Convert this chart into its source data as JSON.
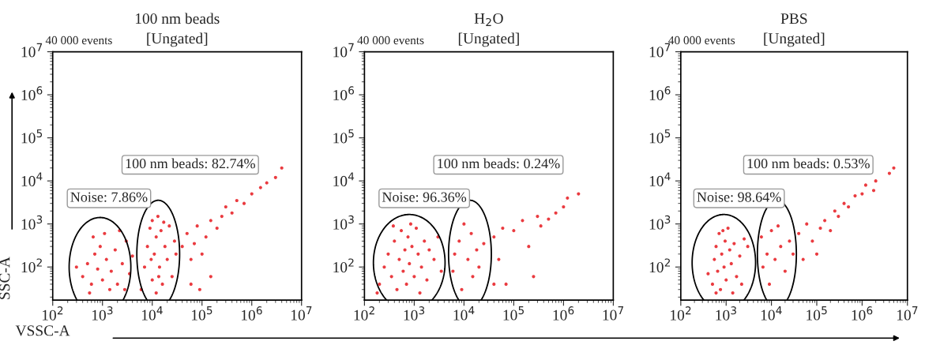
{
  "chart_data": [
    {
      "type": "scatter",
      "title": "100 nm beads",
      "subtitle": "[Ungated]",
      "xlabel": "VSSC-A",
      "ylabel": "SSC-A",
      "annotations": [
        "40 000 events",
        "Noise: 7.86%",
        "100 nm beads: 82.74%"
      ],
      "series": [
        {
          "color": "#e8262b",
          "x": [
            400,
            500,
            600,
            700,
            800,
            900,
            1000,
            1200,
            1500,
            1800,
            2000,
            2500,
            3000,
            3500,
            4000,
            650,
            1100,
            2200,
            300,
            1400,
            2800,
            550,
            6000,
            7000,
            8000,
            9000,
            10000,
            10000,
            11000,
            12000,
            12000,
            13000,
            14000,
            15000,
            16000,
            18000,
            20000,
            22000,
            25000,
            28000,
            30000,
            9500,
            13500,
            17000,
            40000,
            50000,
            60000,
            70000,
            80000,
            100000,
            120000,
            150000,
            200000,
            250000,
            300000,
            400000,
            500000,
            700000,
            1000000,
            1500000,
            2000000,
            3000000,
            4000000,
            60000,
            150000,
            90000
          ],
          "values": [
            60,
            120,
            40,
            200,
            90,
            300,
            50,
            150,
            80,
            250,
            40,
            120,
            400,
            70,
            180,
            500,
            600,
            700,
            100,
            30,
            30,
            25,
            30,
            100,
            300,
            800,
            50,
            1200,
            200,
            500,
            25,
            1500,
            100,
            700,
            40,
            300,
            150,
            900,
            60,
            400,
            200,
            150,
            60,
            1100,
            300,
            600,
            150,
            350,
            900,
            200,
            500,
            1200,
            800,
            1500,
            2500,
            1800,
            3500,
            3000,
            5000,
            7000,
            9000,
            12000,
            20000,
            40,
            60,
            30
          ]
        }
      ],
      "xlim": [
        100,
        10000000
      ],
      "ylim": [
        17,
        10000000
      ],
      "xticks": [
        {
          "value": 100,
          "label": "10$^{2}$"
        },
        {
          "value": 1000,
          "label": "10$^{3}$"
        },
        {
          "value": 10000,
          "label": "10$^{4}$"
        },
        {
          "value": 100000,
          "label": "10$^{5}$"
        },
        {
          "value": 1000000,
          "label": "10$^{6}$"
        },
        {
          "value": 10000000,
          "label": "10$^{7}$"
        }
      ],
      "yticks": [
        {
          "value": 100,
          "label": "10$^{2}$"
        },
        {
          "value": 1000,
          "label": "10$^{3}$"
        },
        {
          "value": 10000,
          "label": "10$^{4}$"
        },
        {
          "value": 100000,
          "label": "10$^{5}$"
        },
        {
          "value": 1000000,
          "label": "10$^{6}$"
        },
        {
          "value": 10000000,
          "label": "10$^{7}$"
        }
      ],
      "log": "xy",
      "grid": false,
      "marker": "circle"
    },
    {
      "type": "scatter",
      "title": "H$_{2}$O",
      "subtitle": "[Ungated]",
      "annotations": [
        "40 000 events",
        "Noise: 96.36%",
        "100 nm beads: 0.24%"
      ],
      "series": [
        {
          "color": "#e8262b",
          "x": [
            200,
            250,
            300,
            350,
            400,
            450,
            500,
            550,
            600,
            650,
            700,
            750,
            800,
            900,
            1000,
            1100,
            1200,
            1400,
            1600,
            1800,
            2000,
            2500,
            3000,
            3500,
            180,
            380,
            850,
            1300,
            6500,
            6000,
            8000,
            9000,
            10000,
            12000,
            14000,
            15000,
            18000,
            20000,
            25000,
            40000,
            40000,
            50000,
            60000,
            70000,
            100000,
            150000,
            200000,
            250000,
            300000,
            350000,
            500000,
            700000,
            1000000,
            1200000,
            2000000
          ],
          "values": [
            40,
            100,
            200,
            60,
            400,
            30,
            150,
            700,
            80,
            250,
            40,
            500,
            120,
            300,
            60,
            800,
            200,
            100,
            400,
            50,
            250,
            150,
            500,
            80,
            25,
            900,
            1000,
            25,
            200,
            80,
            400,
            30,
            1000,
            150,
            600,
            60,
            250,
            100,
            350,
            40,
            500,
            150,
            800,
            40,
            700,
            1200,
            300,
            60,
            1500,
            900,
            1300,
            1800,
            2500,
            4000,
            5000
          ]
        }
      ],
      "xlim": [
        100,
        10000000
      ],
      "ylim": [
        17,
        10000000
      ],
      "xticks": [
        {
          "value": 100,
          "label": "10$^{2}$"
        },
        {
          "value": 1000,
          "label": "10$^{3}$"
        },
        {
          "value": 10000,
          "label": "10$^{4}$"
        },
        {
          "value": 100000,
          "label": "10$^{5}$"
        },
        {
          "value": 1000000,
          "label": "10$^{6}$"
        },
        {
          "value": 10000000,
          "label": "10$^{7}$"
        }
      ],
      "yticks": [
        {
          "value": 100,
          "label": "10$^{2}$"
        },
        {
          "value": 1000,
          "label": "10$^{3}$"
        },
        {
          "value": 10000,
          "label": "10$^{4}$"
        },
        {
          "value": 100000,
          "label": "10$^{5}$"
        },
        {
          "value": 1000000,
          "label": "10$^{6}$"
        },
        {
          "value": 10000000,
          "label": "10$^{7}$"
        }
      ],
      "log": "xy",
      "grid": false,
      "marker": "circle"
    },
    {
      "type": "scatter",
      "title": "PBS",
      "subtitle": "[Ungated]",
      "annotations": [
        "40 000 events",
        "Noise: 98.64%",
        "100 nm beads: 0.53%"
      ],
      "series": [
        {
          "color": "#e8262b",
          "x": [
            500,
            550,
            600,
            650,
            700,
            750,
            800,
            850,
            900,
            950,
            1000,
            1100,
            1200,
            1300,
            1500,
            1700,
            2000,
            2500,
            400,
            1400,
            600,
            2200,
            3000,
            6500,
            6000,
            8000,
            9000,
            10000,
            12000,
            14000,
            16000,
            20000,
            25000,
            30000,
            40000,
            50000,
            60000,
            80000,
            100000,
            120000,
            150000,
            200000,
            250000,
            300000,
            400000,
            500000,
            700000,
            1000000,
            1200000,
            1800000,
            2000000,
            4000000,
            5000000
          ],
          "values": [
            40,
            150,
            300,
            80,
            600,
            30,
            200,
            700,
            100,
            400,
            50,
            800,
            250,
            120,
            350,
            60,
            180,
            450,
            70,
            25,
            25,
            40,
            300,
            100,
            500,
            200,
            40,
            700,
            150,
            900,
            300,
            80,
            400,
            200,
            600,
            150,
            1000,
            400,
            200,
            800,
            1200,
            700,
            2000,
            1500,
            3000,
            2500,
            4500,
            5000,
            8000,
            6000,
            10000,
            15000,
            20000
          ]
        }
      ],
      "xlim": [
        100,
        10000000
      ],
      "ylim": [
        17,
        10000000
      ],
      "xticks": [
        {
          "value": 100,
          "label": "10$^{2}$"
        },
        {
          "value": 1000,
          "label": "10$^{3}$"
        },
        {
          "value": 10000,
          "label": "10$^{4}$"
        },
        {
          "value": 100000,
          "label": "10$^{5}$"
        },
        {
          "value": 1000000,
          "label": "10$^{6}$"
        },
        {
          "value": 10000000,
          "label": "10$^{7}$"
        }
      ],
      "yticks": [
        {
          "value": 100,
          "label": "10$^{2}$"
        },
        {
          "value": 1000,
          "label": "10$^{3}$"
        },
        {
          "value": 10000,
          "label": "10$^{4}$"
        },
        {
          "value": 100000,
          "label": "10$^{5}$"
        },
        {
          "value": 1000000,
          "label": "10$^{6}$"
        },
        {
          "value": 10000000,
          "label": "10$^{7}$"
        }
      ],
      "log": "xy",
      "grid": false,
      "marker": "circle"
    }
  ]
}
